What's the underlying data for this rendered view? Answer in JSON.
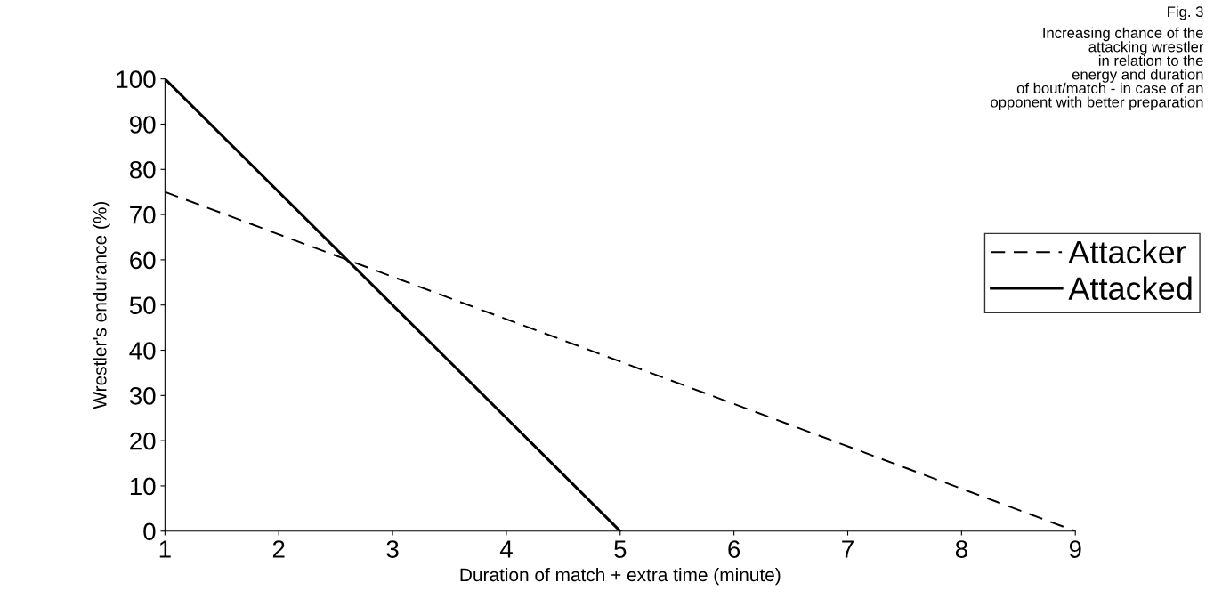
{
  "chart_data": {
    "type": "line",
    "xlabel": "Duration of match + extra time (minute)",
    "ylabel": "Wrestler's endurance (%)",
    "annotations": [
      "Fig. 3",
      "Increasing chance of the\nattacking wrestler\nin relation to the\nenergy and duration\nof bout/match - in case of an\nopponent with better preparation"
    ],
    "series": [
      {
        "name": "Attacker",
        "color": "#000000",
        "line_style": "dashed",
        "x": [
          1,
          9
        ],
        "values": [
          75,
          0
        ]
      },
      {
        "name": "Attacked",
        "color": "#000000",
        "line_style": "solid",
        "x": [
          1,
          5
        ],
        "values": [
          100,
          0
        ]
      }
    ],
    "xlim": [
      1,
      9
    ],
    "xticks": [
      1,
      2,
      3,
      4,
      5,
      6,
      7,
      8,
      9
    ],
    "ylim": [
      0,
      100
    ],
    "yticks": [
      0,
      10,
      20,
      30,
      40,
      50,
      60,
      70,
      80,
      90,
      100
    ],
    "grid": false,
    "legend": "right",
    "marker": "none"
  }
}
